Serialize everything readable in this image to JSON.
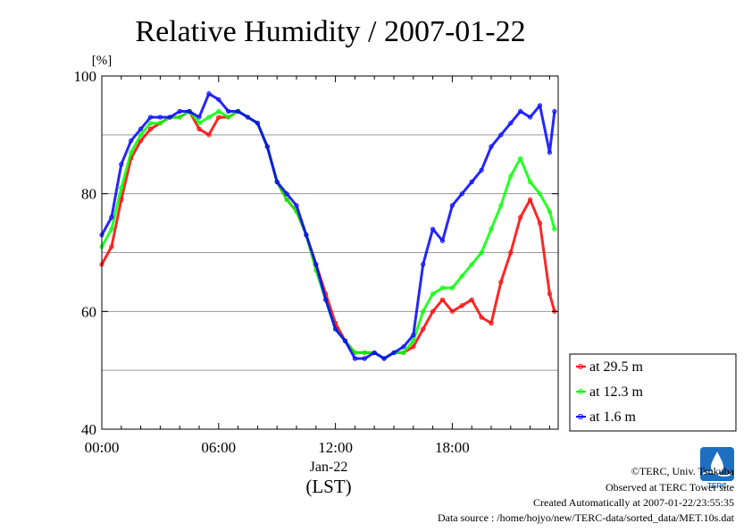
{
  "chart_data": {
    "type": "line",
    "title": "Relative Humidity / 2007-01-22",
    "unit": "[%]",
    "ylim": [
      40,
      100
    ],
    "y_ticks": [
      40,
      60,
      80,
      100
    ],
    "x_ticks": [
      "00:00",
      "06:00",
      "12:00",
      "18:00"
    ],
    "x_date_label": "Jan-22",
    "xlabel": "(LST)",
    "x_hours_range": [
      0,
      23.5
    ],
    "grid": true,
    "legend_position": "right",
    "series": [
      {
        "name": "at 29.5 m",
        "color": "#ff0000",
        "hours": [
          0,
          0.5,
          1,
          1.5,
          2,
          2.5,
          3,
          3.5,
          4,
          4.5,
          5,
          5.5,
          6,
          6.5,
          7,
          7.5,
          8,
          8.5,
          9,
          9.5,
          10,
          10.5,
          11,
          11.5,
          12,
          12.5,
          13,
          13.5,
          14,
          14.5,
          15,
          15.5,
          16,
          16.5,
          17,
          17.5,
          18,
          18.5,
          19,
          19.5,
          20,
          20.5,
          21,
          21.5,
          22,
          22.5,
          23,
          23.25
        ],
        "values": [
          68,
          71,
          79,
          86,
          89,
          91,
          92,
          93,
          93,
          94,
          91,
          90,
          93,
          93,
          94,
          93,
          92,
          88,
          82,
          79,
          77,
          73,
          68,
          63,
          58,
          55,
          53,
          53,
          53,
          52,
          53,
          53,
          54,
          57,
          60,
          62,
          60,
          61,
          62,
          59,
          58,
          65,
          70,
          76,
          79,
          75,
          63,
          60
        ]
      },
      {
        "name": "at 12.3 m",
        "color": "#00ff00",
        "hours": [
          0,
          0.5,
          1,
          1.5,
          2,
          2.5,
          3,
          3.5,
          4,
          4.5,
          5,
          5.5,
          6,
          6.5,
          7,
          7.5,
          8,
          8.5,
          9,
          9.5,
          10,
          10.5,
          11,
          11.5,
          12,
          12.5,
          13,
          13.5,
          14,
          14.5,
          15,
          15.5,
          16,
          16.5,
          17,
          17.5,
          18,
          18.5,
          19,
          19.5,
          20,
          20.5,
          21,
          21.5,
          22,
          22.5,
          23,
          23.25
        ],
        "values": [
          71,
          74,
          81,
          87,
          90,
          92,
          92,
          93,
          93,
          94,
          92,
          93,
          94,
          93,
          94,
          93,
          92,
          88,
          82,
          79,
          77,
          73,
          67,
          62,
          57,
          55,
          53,
          53,
          53,
          52,
          53,
          53,
          55,
          60,
          63,
          64,
          64,
          66,
          68,
          70,
          74,
          78,
          83,
          86,
          82,
          80,
          77,
          74
        ]
      },
      {
        "name": "at 1.6 m",
        "color": "#0000ff",
        "hours": [
          0,
          0.5,
          1,
          1.5,
          2,
          2.5,
          3,
          3.5,
          4,
          4.5,
          5,
          5.5,
          6,
          6.5,
          7,
          7.5,
          8,
          8.5,
          9,
          9.5,
          10,
          10.5,
          11,
          11.5,
          12,
          12.5,
          13,
          13.5,
          14,
          14.5,
          15,
          15.5,
          16,
          16.5,
          17,
          17.5,
          18,
          18.5,
          19,
          19.5,
          20,
          20.5,
          21,
          21.5,
          22,
          22.5,
          23,
          23.25
        ],
        "values": [
          73,
          76,
          85,
          89,
          91,
          93,
          93,
          93,
          94,
          94,
          93,
          97,
          96,
          94,
          94,
          93,
          92,
          88,
          82,
          80,
          78,
          73,
          68,
          62,
          57,
          55,
          52,
          52,
          53,
          52,
          53,
          54,
          56,
          68,
          74,
          72,
          78,
          80,
          82,
          84,
          88,
          90,
          92,
          94,
          93,
          95,
          87,
          94
        ]
      }
    ]
  },
  "credits": [
    "©TERC, Univ. Tsukuba",
    "Observed at TERC Tower site",
    "Created Automatically at 2007-01-22/23:55:35",
    "Data source : /home/hojyo/new/TERC-data/sorted_data/MET.10s.dat"
  ],
  "logo": {
    "label": "TERC",
    "color": "#1e6fc0"
  }
}
